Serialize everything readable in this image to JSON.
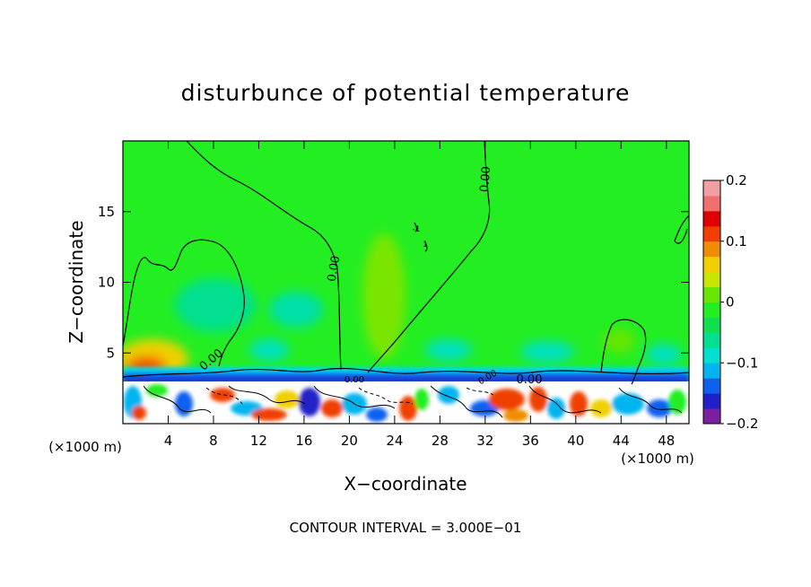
{
  "chart_data": {
    "type": "heatmap",
    "title": "disturbunce of potential temperature",
    "xlabel": "X−coordinate",
    "ylabel": "Z−coordinate",
    "x_unit_left": "(×1000 m)",
    "x_unit_right": "(×1000 m)",
    "xlim": [
      0,
      50
    ],
    "ylim": [
      0,
      20
    ],
    "x_ticks": [
      4,
      8,
      12,
      16,
      20,
      24,
      28,
      32,
      36,
      40,
      44,
      48
    ],
    "y_ticks": [
      5,
      10,
      15
    ],
    "colorbar": {
      "range": [
        -0.2,
        0.2
      ],
      "tick_values": [
        0.2,
        0.1,
        0,
        -0.1,
        -0.2
      ],
      "tick_labels": [
        "0.2",
        "0.1",
        "0",
        "−0.1",
        "−0.2"
      ],
      "colors": [
        "#7a1fa0",
        "#2020c8",
        "#1060f0",
        "#00b4f0",
        "#00e0d0",
        "#00e090",
        "#10e050",
        "#22ee22",
        "#66e600",
        "#c8e600",
        "#f0d000",
        "#f08c00",
        "#f04000",
        "#e00000",
        "#f07070",
        "#f0a0a0"
      ]
    },
    "background_value": 0.0,
    "features": [
      {
        "name": "warm anomaly near x=3, z=4",
        "value": 0.15
      },
      {
        "name": "warm plume near x=22, z=9",
        "value": 0.03
      },
      {
        "name": "cool anomaly near x=12, z=6",
        "value": -0.03
      },
      {
        "name": "cold layer near z=3.5",
        "value": -0.15
      },
      {
        "name": "turbulent lower layer z<3",
        "value": "mixed"
      }
    ],
    "contour_labels": [
      "0.00",
      "0.00",
      "0.00",
      "0.00",
      "0.00",
      "0.00",
      "-1",
      "1"
    ]
  },
  "footer": {
    "contour_interval": "CONTOUR INTERVAL = 3.000E−01"
  }
}
